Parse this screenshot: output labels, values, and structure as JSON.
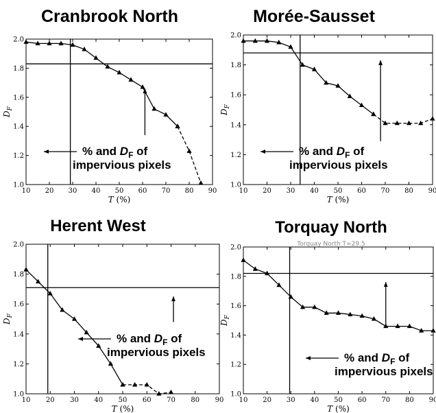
{
  "chart_data": [
    {
      "type": "line",
      "title": "Cranbrook North",
      "xlabel": "T",
      "xunit": "(%)",
      "ylabel": "D",
      "ylabel_sub": "F",
      "xlim": [
        10,
        90
      ],
      "ylim": [
        1.0,
        2.0
      ],
      "xticks": [
        10,
        20,
        30,
        40,
        50,
        60,
        70,
        80,
        90
      ],
      "yticks": [
        1.0,
        1.2,
        1.4,
        1.6,
        1.8,
        2.0
      ],
      "series": [
        {
          "x": [
            10,
            15,
            20,
            25,
            30,
            35,
            40,
            45,
            50,
            55,
            60,
            65,
            70,
            75
          ],
          "y": [
            1.98,
            1.97,
            1.97,
            1.97,
            1.96,
            1.93,
            1.87,
            1.81,
            1.77,
            1.72,
            1.67,
            1.52,
            1.48,
            1.4
          ],
          "style": "solid"
        },
        {
          "x": [
            75,
            80,
            85
          ],
          "y": [
            1.4,
            1.23,
            1.01
          ],
          "style": "dashed"
        }
      ],
      "crosshair": {
        "x": 29,
        "y": 1.83
      },
      "up_arrow": {
        "x": 61,
        "from": 1.34,
        "to": 1.67
      },
      "annotation": {
        "pct": "% and ",
        "d": "D",
        "sub": "F",
        "of": " of",
        "line2": "impervious pixels"
      }
    },
    {
      "type": "line",
      "title": "Morée-Sausset",
      "xlabel": "T",
      "xunit": "(%)",
      "ylabel": "D",
      "ylabel_sub": "F",
      "xlim": [
        10,
        90
      ],
      "ylim": [
        1.0,
        2.0
      ],
      "xticks": [
        10,
        20,
        30,
        40,
        50,
        60,
        70,
        80,
        90
      ],
      "yticks": [
        1.0,
        1.2,
        1.4,
        1.6,
        1.8,
        2.0
      ],
      "series": [
        {
          "x": [
            10,
            15,
            20,
            25,
            30,
            35,
            40,
            45,
            50,
            55,
            60,
            65
          ],
          "y": [
            1.96,
            1.96,
            1.96,
            1.95,
            1.92,
            1.8,
            1.77,
            1.68,
            1.66,
            1.59,
            1.53,
            1.47
          ],
          "style": "solid"
        },
        {
          "x": [
            65,
            70,
            75,
            80,
            85,
            90
          ],
          "y": [
            1.47,
            1.41,
            1.41,
            1.41,
            1.41,
            1.44
          ],
          "style": "dashed"
        }
      ],
      "crosshair": {
        "x": 34,
        "y": 1.88
      },
      "up_arrow": {
        "x": 68,
        "from": 1.29,
        "to": 1.84
      },
      "annotation": {
        "pct": "% and ",
        "d": "D",
        "sub": "F",
        "of": " of",
        "line2": "impervious pixels"
      }
    },
    {
      "type": "line",
      "title": "Herent West",
      "xlabel": "T",
      "xunit": "(%)",
      "ylabel": "D",
      "ylabel_sub": "F",
      "xlim": [
        10,
        90
      ],
      "ylim": [
        1.0,
        2.0
      ],
      "xticks": [
        10,
        20,
        30,
        40,
        50,
        60,
        70,
        80,
        90
      ],
      "yticks": [
        1.0,
        1.2,
        1.4,
        1.6,
        1.8,
        2.0
      ],
      "series": [
        {
          "x": [
            10,
            15,
            20,
            25,
            30,
            35,
            40,
            45,
            50
          ],
          "y": [
            1.83,
            1.75,
            1.67,
            1.56,
            1.5,
            1.41,
            1.32,
            1.2,
            1.06
          ],
          "style": "solid"
        },
        {
          "x": [
            50,
            55,
            60,
            65,
            70
          ],
          "y": [
            1.06,
            1.06,
            1.06,
            1.0,
            1.01
          ],
          "style": "dashed"
        }
      ],
      "crosshair": {
        "x": 19,
        "y": 1.71
      },
      "up_arrow": {
        "x": 71,
        "from": 1.48,
        "to": 1.66
      },
      "annotation": {
        "pct": "% and ",
        "d": "D",
        "sub": "F",
        "of": " of",
        "line2": "impervious pixels"
      }
    },
    {
      "type": "line",
      "title": "Torquay North",
      "ghost_text": "Torquay North T=29.5",
      "xlabel": "T",
      "xunit": "(%)",
      "ylabel": "D",
      "ylabel_sub": "F",
      "xlim": [
        10,
        90
      ],
      "ylim": [
        1.0,
        2.0
      ],
      "xticks": [
        10,
        20,
        30,
        40,
        50,
        60,
        70,
        80,
        90
      ],
      "yticks": [
        1.0,
        1.2,
        1.4,
        1.6,
        1.8,
        2.0
      ],
      "series": [
        {
          "x": [
            10,
            15,
            20,
            25,
            30,
            35,
            40,
            45,
            50,
            55,
            60,
            65,
            70,
            75,
            80,
            85,
            90
          ],
          "y": [
            1.91,
            1.85,
            1.82,
            1.74,
            1.66,
            1.59,
            1.59,
            1.55,
            1.55,
            1.54,
            1.53,
            1.51,
            1.46,
            1.46,
            1.46,
            1.43,
            1.43
          ],
          "style": "solid"
        }
      ],
      "crosshair": {
        "x": 29.5,
        "y": 1.82
      },
      "up_arrow": {
        "x": 70,
        "from": 1.46,
        "to": 1.77
      },
      "annotation": {
        "pct": "% and ",
        "d": "D",
        "sub": "F",
        "of": " of",
        "line2": "impervious pixels"
      }
    }
  ]
}
